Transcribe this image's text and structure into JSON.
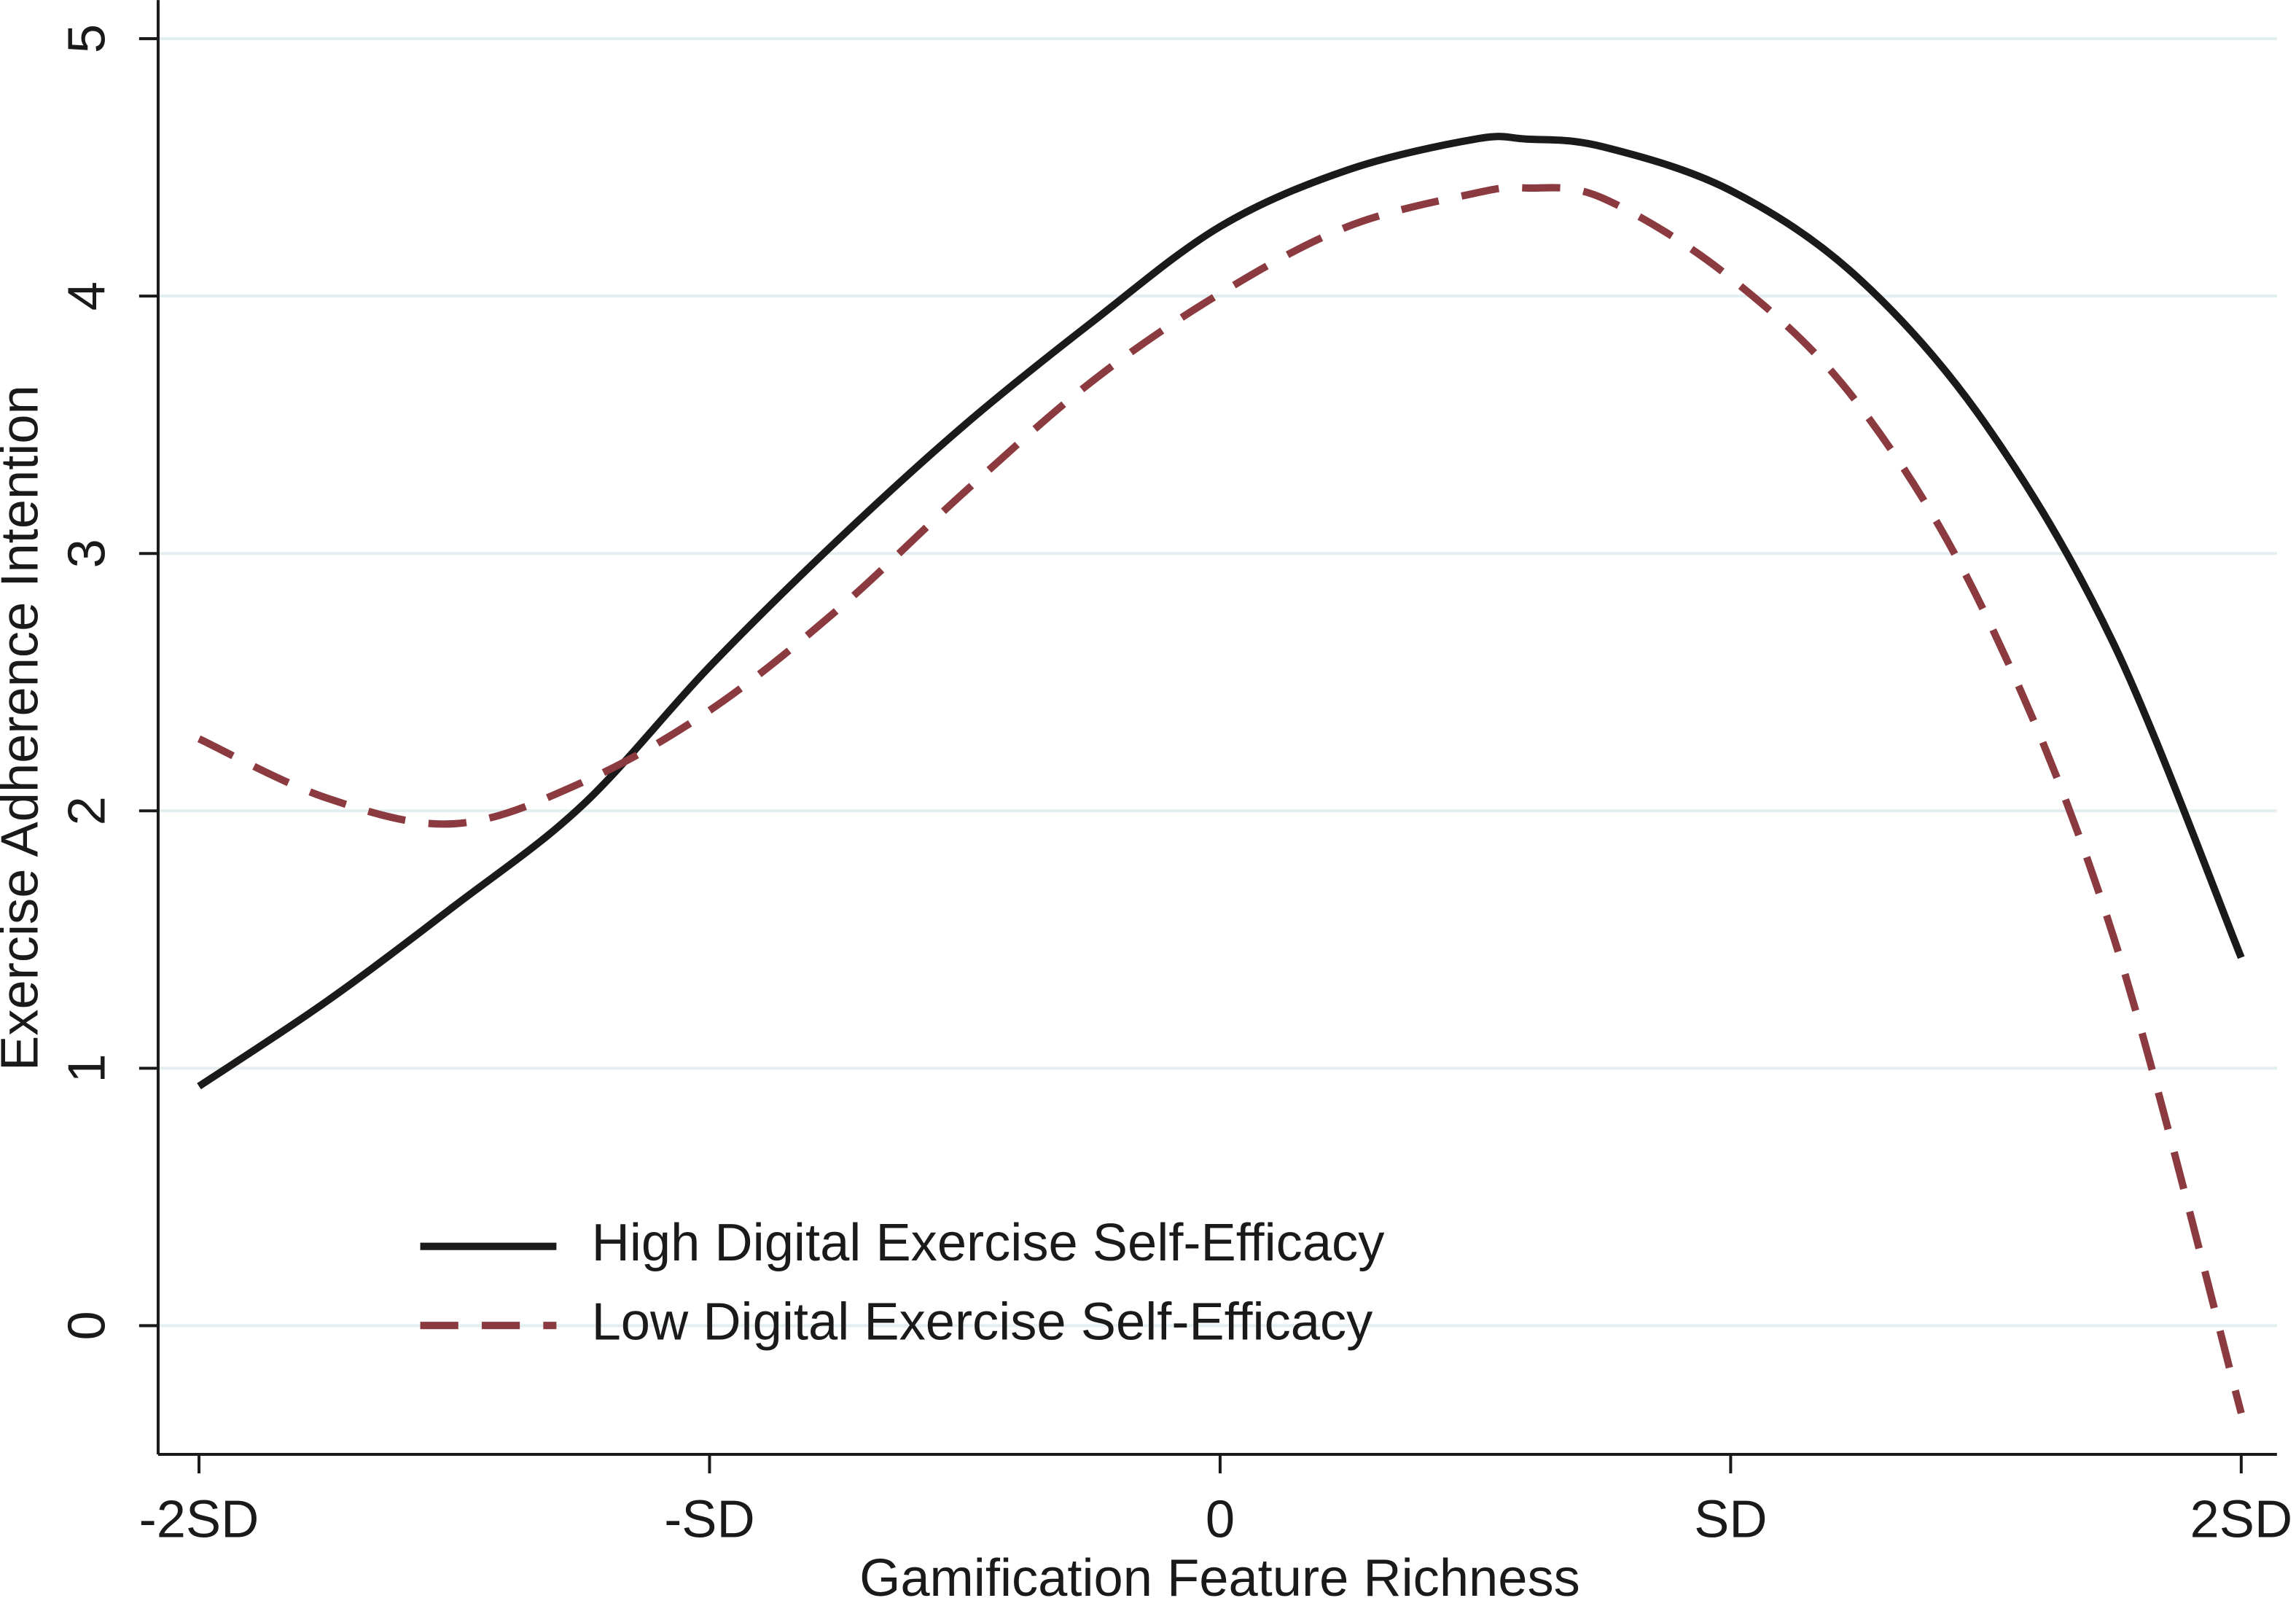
{
  "chart_data": {
    "type": "line",
    "xlabel": "Gamification Feature Richness",
    "ylabel": "Exercise Adherence Intention",
    "x": [
      -2,
      -1.75,
      -1.5,
      -1.25,
      -1,
      -0.75,
      -0.5,
      -0.25,
      0,
      0.25,
      0.5,
      0.6,
      0.75,
      1,
      1.25,
      1.5,
      1.75,
      2
    ],
    "series": [
      {
        "name": "High Digital Exercise Self-Efficacy",
        "color": "#1a1a1a",
        "dash": "solid",
        "values": [
          0.93,
          1.26,
          1.63,
          2.02,
          2.56,
          3.05,
          3.5,
          3.9,
          4.27,
          4.49,
          4.61,
          4.61,
          4.58,
          4.41,
          4.07,
          3.5,
          2.65,
          1.43
        ]
      },
      {
        "name": "Low Digital Exercise Self-Efficacy",
        "color": "#8b3a3f",
        "dash": "dashed",
        "values": [
          2.28,
          2.05,
          1.95,
          2.11,
          2.39,
          2.78,
          3.24,
          3.67,
          4.01,
          4.27,
          4.4,
          4.42,
          4.38,
          4.07,
          3.58,
          2.76,
          1.51,
          -0.34
        ]
      }
    ],
    "xlim": [
      -2.08,
      2.07
    ],
    "ylim": [
      -0.5,
      5.15
    ],
    "xticks": [
      {
        "value": -2,
        "label": "-2SD"
      },
      {
        "value": -1,
        "label": "-SD"
      },
      0,
      {
        "value": 1,
        "label": "SD"
      },
      {
        "value": 2,
        "label": "2SD"
      }
    ],
    "yticks": [
      0,
      1,
      2,
      3,
      4,
      5
    ],
    "grid": true,
    "legend": "lower left"
  }
}
